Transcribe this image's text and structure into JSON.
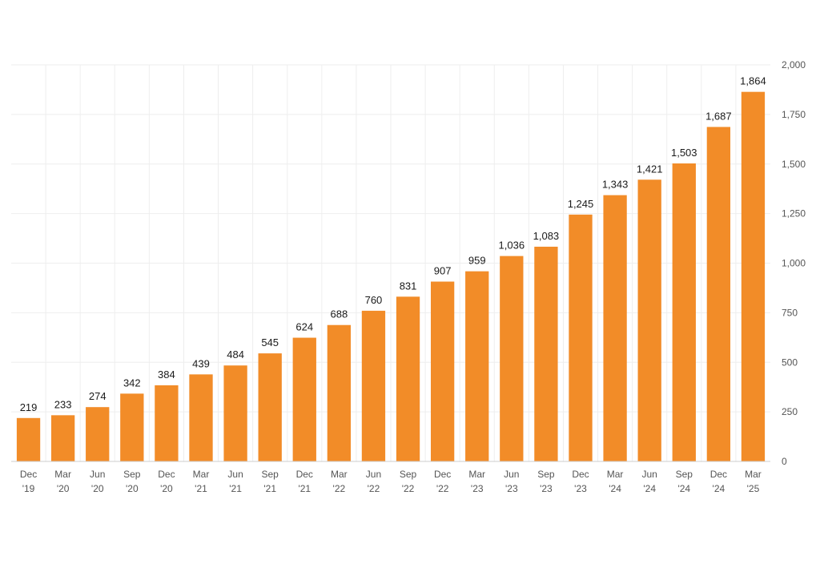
{
  "chart_data": {
    "type": "bar",
    "title": "",
    "xlabel": "",
    "ylabel": "",
    "categories": [
      [
        "Dec",
        "'19"
      ],
      [
        "Mar",
        "'20"
      ],
      [
        "Jun",
        "'20"
      ],
      [
        "Sep",
        "'20"
      ],
      [
        "Dec",
        "'20"
      ],
      [
        "Mar",
        "'21"
      ],
      [
        "Jun",
        "'21"
      ],
      [
        "Sep",
        "'21"
      ],
      [
        "Dec",
        "'21"
      ],
      [
        "Mar",
        "'22"
      ],
      [
        "Jun",
        "'22"
      ],
      [
        "Sep",
        "'22"
      ],
      [
        "Dec",
        "'22"
      ],
      [
        "Mar",
        "'23"
      ],
      [
        "Jun",
        "'23"
      ],
      [
        "Sep",
        "'23"
      ],
      [
        "Dec",
        "'23"
      ],
      [
        "Mar",
        "'24"
      ],
      [
        "Jun",
        "'24"
      ],
      [
        "Sep",
        "'24"
      ],
      [
        "Dec",
        "'24"
      ],
      [
        "Mar",
        "'25"
      ]
    ],
    "values": [
      219,
      233,
      274,
      342,
      384,
      439,
      484,
      545,
      624,
      688,
      760,
      831,
      907,
      959,
      1036,
      1083,
      1245,
      1343,
      1421,
      1503,
      1687,
      1864
    ],
    "value_labels": [
      "219",
      "233",
      "274",
      "342",
      "384",
      "439",
      "484",
      "545",
      "624",
      "688",
      "760",
      "831",
      "907",
      "959",
      "1,036",
      "1,083",
      "1,245",
      "1,343",
      "1,421",
      "1,503",
      "1,687",
      "1,864"
    ],
    "ylim": [
      0,
      2000
    ],
    "y_ticks": [
      0,
      250,
      500,
      750,
      1000,
      1250,
      1500,
      1750,
      2000
    ],
    "y_tick_labels": [
      "0",
      "250",
      "500",
      "750",
      "1,000",
      "1,250",
      "1,500",
      "1,750",
      "2,000"
    ],
    "y_axis_position": "right",
    "grid": true,
    "bar_color": "#f28c28"
  }
}
